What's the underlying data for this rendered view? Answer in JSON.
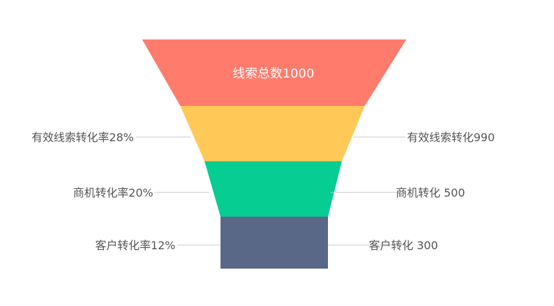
{
  "chart_data": {
    "type": "funnel",
    "title": "",
    "stages": [
      {
        "label": "线索总数1000",
        "value": 1000,
        "color": "#FF7B6C"
      },
      {
        "label": "有效线索转化990",
        "value": 990,
        "color": "#FFC857"
      },
      {
        "label": "商机转化 500",
        "value": 500,
        "color": "#06CD92"
      },
      {
        "label": "客户转化 300",
        "value": 300,
        "color": "#5A6887"
      }
    ],
    "rates": [
      {
        "label": "有效线索转化率28%",
        "value": 28
      },
      {
        "label": "商机转化率20%",
        "value": 20
      },
      {
        "label": "客户转化率12%",
        "value": 12
      }
    ]
  }
}
